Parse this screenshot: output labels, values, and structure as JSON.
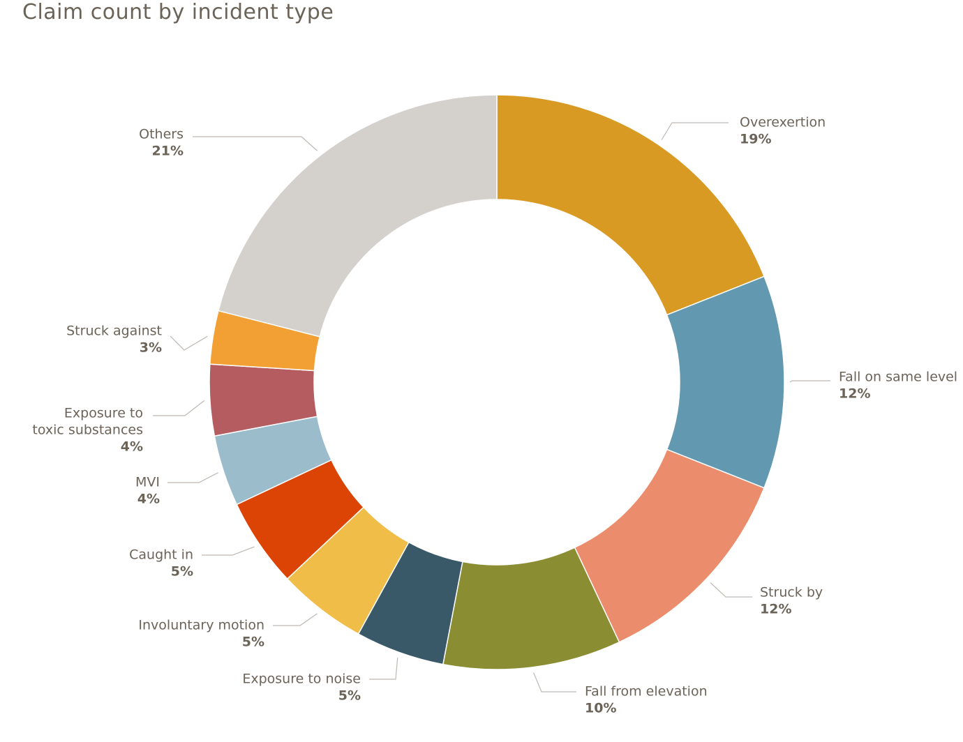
{
  "chart_data": {
    "type": "pie",
    "title": "Claim count by incident type",
    "donut": true,
    "slices": [
      {
        "label": [
          "Overexertion"
        ],
        "percent_label": "19%",
        "value": 19,
        "color": "#d99a24"
      },
      {
        "label": [
          "Fall on same level"
        ],
        "percent_label": "12%",
        "value": 12,
        "color": "#6399b0"
      },
      {
        "label": [
          "Struck by"
        ],
        "percent_label": "12%",
        "value": 12,
        "color": "#eb8d6c"
      },
      {
        "label": [
          "Fall from elevation"
        ],
        "percent_label": "10%",
        "value": 10,
        "color": "#8a8d31"
      },
      {
        "label": [
          "Exposure to noise"
        ],
        "percent_label": "5%",
        "value": 5,
        "color": "#3a5968"
      },
      {
        "label": [
          "Involuntary motion"
        ],
        "percent_label": "5%",
        "value": 5,
        "color": "#f0bd48"
      },
      {
        "label": [
          "Caught in"
        ],
        "percent_label": "5%",
        "value": 5,
        "color": "#db4405"
      },
      {
        "label": [
          "MVI"
        ],
        "percent_label": "4%",
        "value": 4,
        "color": "#9bbccb"
      },
      {
        "label": [
          "Exposure to",
          "toxic substances"
        ],
        "percent_label": "4%",
        "value": 4,
        "color": "#b55c60"
      },
      {
        "label": [
          "Struck against"
        ],
        "percent_label": "3%",
        "value": 3,
        "color": "#f2a033"
      },
      {
        "label": [
          "Others"
        ],
        "percent_label": "21%",
        "value": 21,
        "color": "#d4d1cd"
      }
    ]
  }
}
